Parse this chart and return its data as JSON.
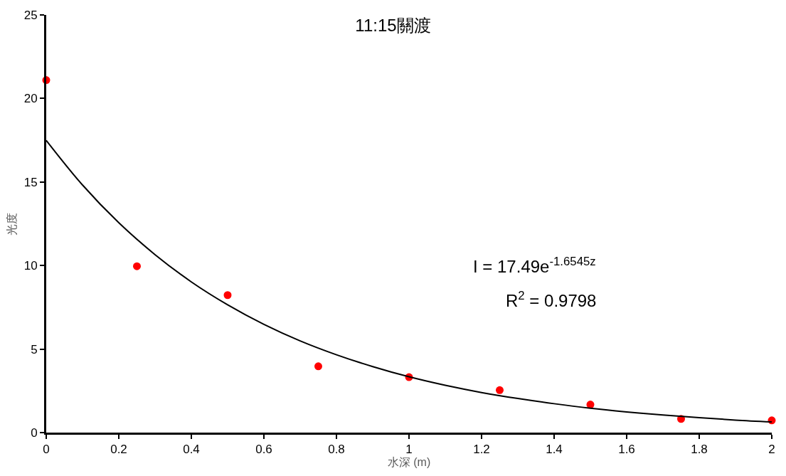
{
  "chart_data": {
    "type": "scatter",
    "title": "11:15關渡",
    "xlabel": "水深 (m)",
    "ylabel": "光度",
    "x": [
      0,
      0.25,
      0.5,
      0.75,
      1,
      1.25,
      1.5,
      1.75,
      2
    ],
    "series": [
      {
        "color": "#ff0000",
        "marker": "circle",
        "values": [
          21.1,
          9.96,
          8.23,
          3.97,
          3.32,
          2.54,
          1.68,
          0.82,
          0.73
        ]
      },
      {
        "type": "line",
        "color": "#000000",
        "marker": "none",
        "line_style": "solid",
        "x": [
          0,
          0.1,
          0.2,
          0.3,
          0.4,
          0.5,
          0.6,
          0.7,
          0.8,
          0.9,
          1.0,
          1.1,
          1.2,
          1.3,
          1.4,
          1.5,
          1.6,
          1.7,
          1.8,
          1.9,
          2.0
        ],
        "values": [
          17.49,
          14.82,
          12.56,
          10.65,
          9.02,
          7.65,
          6.48,
          5.49,
          4.66,
          3.95,
          3.34,
          2.83,
          2.4,
          2.04,
          1.73,
          1.46,
          1.24,
          1.05,
          0.89,
          0.75,
          0.64
        ]
      }
    ],
    "annotations": [
      "I = 17.49e$^{-1.6545z}$",
      "R$^{2}$ = 0.9798"
    ],
    "xlim": [
      0,
      2
    ],
    "xticks": [
      0,
      0.2,
      0.4,
      0.6,
      0.8,
      1,
      1.2,
      1.4,
      1.6,
      1.8,
      2
    ],
    "ylim": [
      0,
      25
    ],
    "yticks": [
      0,
      5,
      10,
      15,
      20,
      25
    ]
  }
}
